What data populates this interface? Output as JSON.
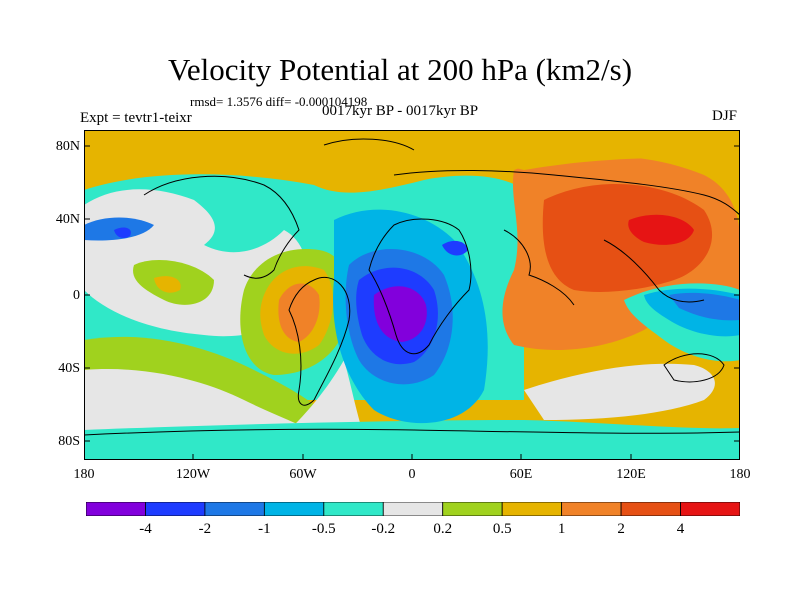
{
  "figure": {
    "title": "Velocity Potential at 200 hPa (km2/s)",
    "stats": "rmsd= 1.3576 diff= -0.000104198",
    "experiment": "Expt = tevtr1-teixr",
    "period": "0017kyr BP - 0017kyr BP",
    "season": "DJF"
  },
  "axes": {
    "lat_labels": [
      "80N",
      "40N",
      "0",
      "40S",
      "80S"
    ],
    "lon_labels": [
      "180",
      "120W",
      "60W",
      "0",
      "60E",
      "120E",
      "180"
    ]
  },
  "colorbar": {
    "labels": [
      "-4",
      "-2",
      "-1",
      "-0.5",
      "-0.2",
      "0.2",
      "0.5",
      "1",
      "2",
      "4"
    ],
    "colors": [
      "#8200dc",
      "#1e3cff",
      "#1e78e6",
      "#00b4e6",
      "#30e8c8",
      "#e6e6e6",
      "#a0d21e",
      "#e6b400",
      "#f08228",
      "#e65014",
      "#e61414"
    ]
  },
  "palette": {
    "lt4": "#8200dc",
    "m4": "#1e3cff",
    "m2": "#1e78e6",
    "m1": "#00b4e6",
    "m05": "#30e8c8",
    "zero": "#e6e6e6",
    "p02": "#a0d21e",
    "p05": "#e6b400",
    "p1": "#f08228",
    "p2": "#e65014",
    "p4": "#e61414"
  }
}
